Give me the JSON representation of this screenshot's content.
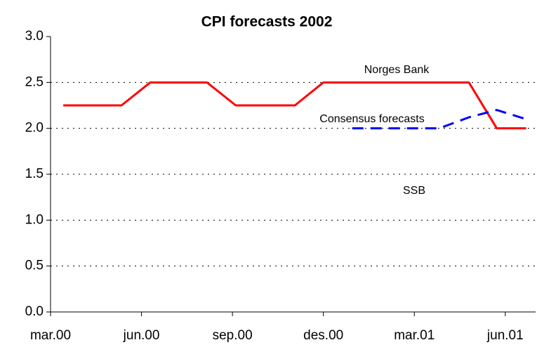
{
  "chart_data": {
    "type": "line",
    "title": "CPI forecasts 2002",
    "xlim": [
      0,
      16
    ],
    "xticks": [
      {
        "value": 0,
        "label": "mar.00"
      },
      {
        "value": 3,
        "label": "jun.00"
      },
      {
        "value": 6,
        "label": "sep.00"
      },
      {
        "value": 9,
        "label": "des.00"
      },
      {
        "value": 12,
        "label": "mar.01"
      },
      {
        "value": 15,
        "label": "jun.01"
      }
    ],
    "ylim": [
      0,
      3
    ],
    "yticks": [
      {
        "value": 0,
        "label": "0.0"
      },
      0.5,
      {
        "value": 1,
        "label": "1.0"
      },
      1.5,
      {
        "value": 2,
        "label": "2.0"
      },
      2.5,
      {
        "value": 3,
        "label": "3.0"
      }
    ],
    "grid": true,
    "series": [
      {
        "name": "Norges Bank",
        "color": "#ff0000",
        "dashed": false,
        "x": [
          0.42,
          2.34,
          3.29,
          5.16,
          6.11,
          8.06,
          9.0,
          13.8,
          14.72,
          15.69
        ],
        "values": [
          2.25,
          2.25,
          2.5,
          2.5,
          2.25,
          2.25,
          2.5,
          2.5,
          2.0,
          2.0
        ]
      },
      {
        "name": "Consensus forecasts",
        "color": "#0000ff",
        "dashed": true,
        "x": [
          9.95,
          12.82,
          13.8,
          14.72,
          15.69
        ],
        "values": [
          2.0,
          2.0,
          2.12,
          2.2,
          2.1
        ]
      }
    ],
    "annotations": [
      "SSB"
    ]
  }
}
